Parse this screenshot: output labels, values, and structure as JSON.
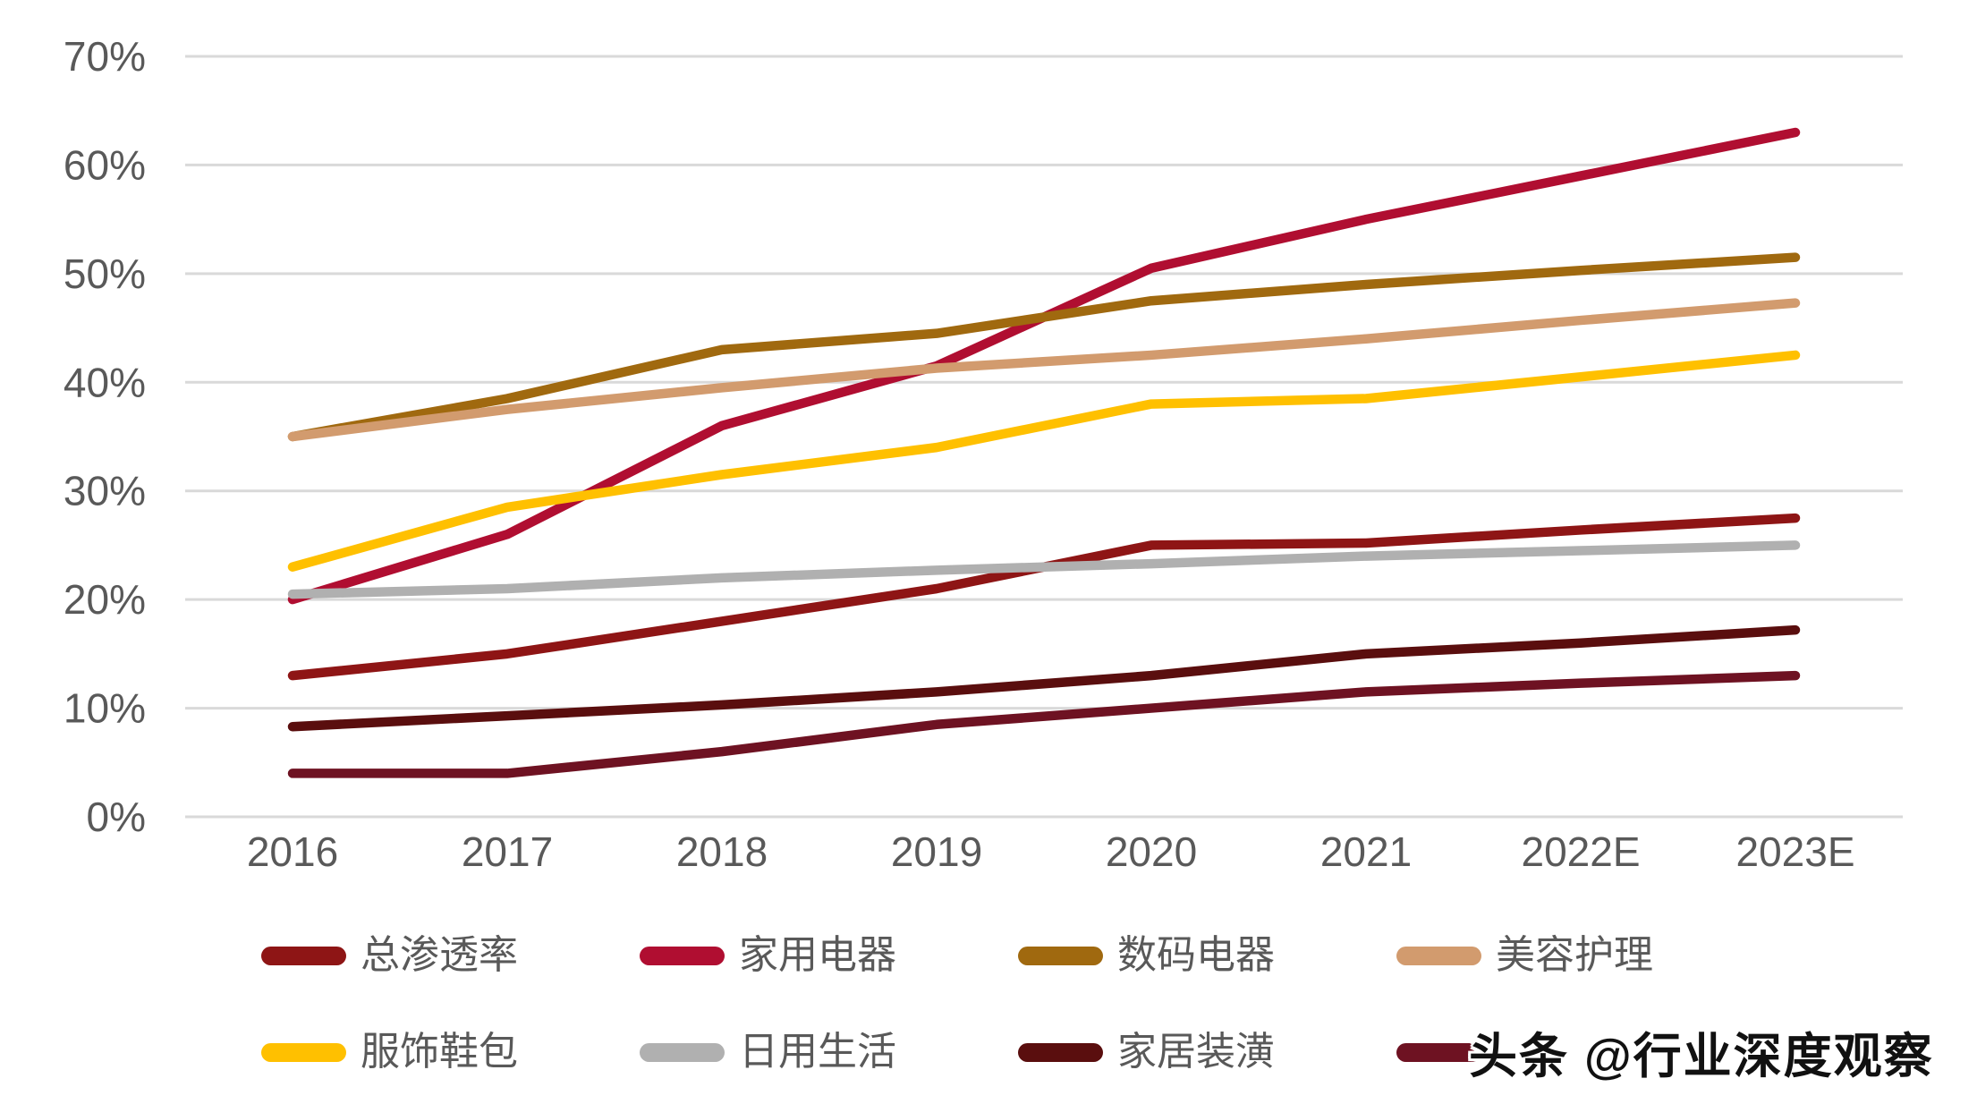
{
  "watermark": {
    "text": "头条 @行业深度观察"
  },
  "colors": {
    "background": "#FFFFFF",
    "axis_text": "#595959",
    "gridline": "#D9D9D9"
  },
  "chart_data": {
    "type": "line",
    "title": "",
    "xlabel": "",
    "ylabel": "",
    "categories": [
      "2016",
      "2017",
      "2018",
      "2019",
      "2020",
      "2021",
      "2022E",
      "2023E"
    ],
    "y_axis": {
      "min": 0,
      "max": 70,
      "step": 10,
      "tick_labels": [
        "0%",
        "10%",
        "20%",
        "30%",
        "40%",
        "50%",
        "60%",
        "70%"
      ],
      "grid": true
    },
    "legend_position": "bottom",
    "series": [
      {
        "name": "总渗透率",
        "color": "#8E1515",
        "values": [
          13,
          15,
          18,
          21,
          25,
          25.2,
          26.4,
          27.5
        ]
      },
      {
        "name": "家用电器",
        "color": "#B00E31",
        "values": [
          20,
          26,
          36,
          41.5,
          50.5,
          55,
          59,
          63
        ]
      },
      {
        "name": "数码电器",
        "color": "#A0690F",
        "values": [
          35,
          38.5,
          43,
          44.5,
          47.5,
          49,
          50.3,
          51.5
        ]
      },
      {
        "name": "美容护理",
        "color": "#D29B6E",
        "values": [
          35,
          37.5,
          39.5,
          41.3,
          42.5,
          44,
          45.7,
          47.3
        ]
      },
      {
        "name": "服饰鞋包",
        "color": "#FFC000",
        "values": [
          23,
          28.5,
          31.5,
          34,
          38,
          38.5,
          40.5,
          42.5
        ]
      },
      {
        "name": "日用生活",
        "color": "#B0B0B0",
        "values": [
          20.5,
          21,
          22,
          22.7,
          23.3,
          24,
          24.5,
          25
        ]
      },
      {
        "name": "家居装潢",
        "color": "#5A0E0E",
        "values": [
          8.3,
          9.3,
          10.3,
          11.5,
          13,
          15,
          16,
          17.2
        ]
      },
      {
        "name": "",
        "label_obscured_by_watermark": true,
        "color": "#6E1222",
        "values": [
          4,
          4,
          6,
          8.5,
          10,
          11.5,
          12.3,
          13
        ]
      }
    ]
  },
  "legend": {
    "rows": [
      [
        0,
        1,
        2,
        3
      ],
      [
        4,
        5,
        6,
        7
      ]
    ]
  }
}
